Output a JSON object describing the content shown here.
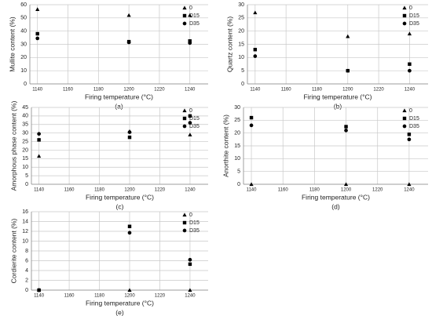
{
  "chart_data": [
    {
      "type": "scatter",
      "panel": "(a)",
      "x_label": "Firing temperature  (°C)",
      "y_label": "Mullite content  (%)",
      "x": [
        1140,
        1200,
        1240
      ],
      "xlim": [
        1135,
        1252
      ],
      "xticks": [
        1140,
        1160,
        1180,
        1200,
        1220,
        1240
      ],
      "ylim": [
        0,
        60
      ],
      "yticks": [
        0,
        10,
        20,
        30,
        40,
        50,
        60
      ],
      "grid": true,
      "legend": "right",
      "series": [
        {
          "name": "0",
          "marker": "triangle",
          "color": "#000000",
          "values": [
            56.5,
            52,
            52
          ]
        },
        {
          "name": "D15",
          "marker": "square",
          "color": "#000000",
          "values": [
            38,
            32,
            32.5
          ]
        },
        {
          "name": "D35",
          "marker": "circle",
          "color": "#000000",
          "values": [
            34.5,
            31.5,
            31
          ]
        }
      ]
    },
    {
      "type": "scatter",
      "panel": "(b)",
      "x_label": "Firing temperature  (°C)",
      "y_label": "Quartz content  (%)",
      "x": [
        1140,
        1200,
        1240
      ],
      "xlim": [
        1135,
        1252
      ],
      "xticks": [
        1140,
        1160,
        1180,
        1200,
        1220,
        1240
      ],
      "ylim": [
        0,
        30
      ],
      "yticks": [
        0,
        5,
        10,
        15,
        20,
        25,
        30
      ],
      "grid": true,
      "legend": "right",
      "series": [
        {
          "name": "0",
          "marker": "triangle",
          "color": "#000000",
          "values": [
            27,
            18,
            19
          ]
        },
        {
          "name": "D15",
          "marker": "square",
          "color": "#000000",
          "values": [
            13,
            5,
            7.5
          ]
        },
        {
          "name": "D35",
          "marker": "circle",
          "color": "#000000",
          "values": [
            10.5,
            5,
            5
          ]
        }
      ]
    },
    {
      "type": "scatter",
      "panel": "(c)",
      "x_label": "Firing temperature  (°C)",
      "y_label": "Amorphous phase content  (%)",
      "x": [
        1140,
        1200,
        1240
      ],
      "xlim": [
        1135,
        1252
      ],
      "xticks": [
        1140,
        1160,
        1180,
        1200,
        1220,
        1240
      ],
      "ylim": [
        0,
        45
      ],
      "yticks": [
        0,
        5,
        10,
        15,
        20,
        25,
        30,
        35,
        40,
        45
      ],
      "grid": true,
      "legend": "right",
      "series": [
        {
          "name": "0",
          "marker": "triangle",
          "color": "#000000",
          "values": [
            16.5,
            31,
            29
          ]
        },
        {
          "name": "D15",
          "marker": "square",
          "color": "#000000",
          "values": [
            26,
            27.5,
            40
          ]
        },
        {
          "name": "D35",
          "marker": "circle",
          "color": "#000000",
          "values": [
            29.5,
            30.5,
            36
          ]
        }
      ]
    },
    {
      "type": "scatter",
      "panel": "(d)",
      "x_label": "Firing temperature  (°C)",
      "y_label": "Anorthite content  (%)",
      "x": [
        1140,
        1200,
        1240
      ],
      "xlim": [
        1135,
        1252
      ],
      "xticks": [
        1140,
        1160,
        1180,
        1200,
        1220,
        1240
      ],
      "ylim": [
        0,
        30
      ],
      "yticks": [
        0,
        5,
        10,
        15,
        20,
        25,
        30
      ],
      "grid": true,
      "legend": "right",
      "series": [
        {
          "name": "0",
          "marker": "triangle",
          "color": "#000000",
          "values": [
            0,
            0,
            0
          ]
        },
        {
          "name": "D15",
          "marker": "square",
          "color": "#000000",
          "values": [
            26,
            22.5,
            19.5
          ]
        },
        {
          "name": "D35",
          "marker": "circle",
          "color": "#000000",
          "values": [
            23,
            21,
            17.5
          ]
        }
      ]
    },
    {
      "type": "scatter",
      "panel": "(e)",
      "x_label": "Firing temperature  (°C)",
      "y_label": "Cordierite content  (%)",
      "x": [
        1140,
        1200,
        1240
      ],
      "xlim": [
        1135,
        1252
      ],
      "xticks": [
        1140,
        1160,
        1180,
        1200,
        1220,
        1240
      ],
      "ylim": [
        0,
        16
      ],
      "yticks": [
        0,
        2,
        4,
        6,
        8,
        10,
        12,
        14,
        16
      ],
      "grid": true,
      "legend": "right",
      "series": [
        {
          "name": "0",
          "marker": "triangle",
          "color": "#000000",
          "values": [
            0,
            0,
            0
          ]
        },
        {
          "name": "D15",
          "marker": "square",
          "color": "#000000",
          "values": [
            0,
            13,
            5.3
          ]
        },
        {
          "name": "D35",
          "marker": "circle",
          "color": "#000000",
          "values": [
            0,
            11.7,
            6.2
          ]
        }
      ]
    }
  ]
}
